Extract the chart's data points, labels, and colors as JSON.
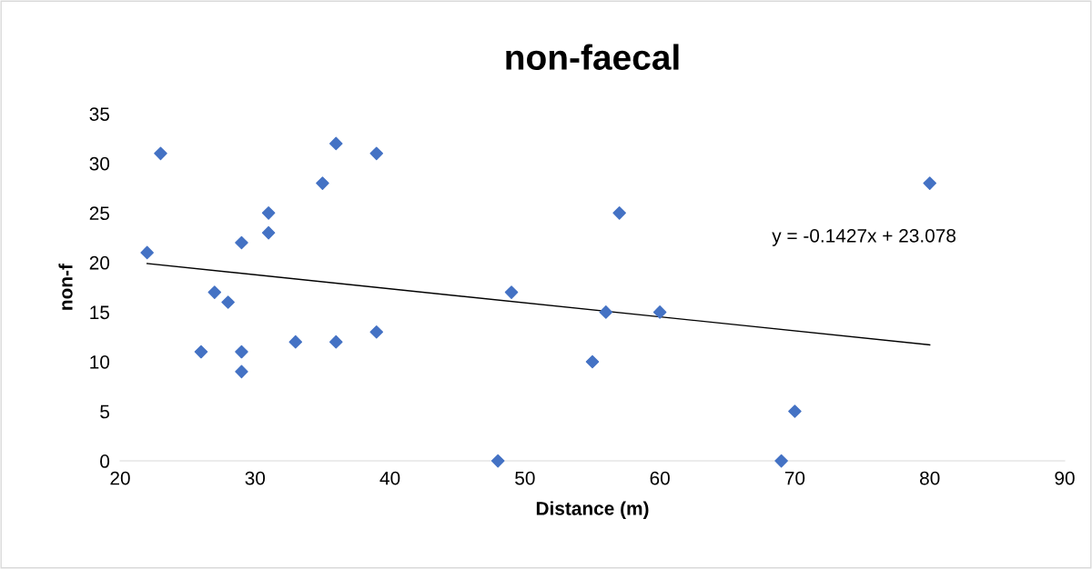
{
  "chart_data": {
    "type": "scatter",
    "title": "non-faecal",
    "xlabel": "Distance (m)",
    "ylabel": "non-f",
    "xlim": [
      20,
      90
    ],
    "xticks": [
      20,
      30,
      40,
      50,
      60,
      70,
      80,
      90
    ],
    "ylim": [
      0,
      35
    ],
    "yticks": [
      0,
      5,
      10,
      15,
      20,
      25,
      30,
      35
    ],
    "grid": false,
    "legend": false,
    "marker": "diamond",
    "series": [
      {
        "color": "#4472c4",
        "x": [
          22,
          23,
          26,
          27,
          28,
          29,
          29,
          29,
          31,
          31,
          33,
          35,
          36,
          36,
          39,
          39,
          48,
          49,
          55,
          56,
          57,
          60,
          69,
          70,
          80
        ],
        "values": [
          21,
          31,
          11,
          17,
          16,
          22,
          11,
          9,
          25,
          23,
          12,
          28,
          32,
          12,
          31,
          13,
          0,
          17,
          10,
          15,
          25,
          15,
          0,
          5,
          28
        ]
      },
      {
        "type": "line",
        "color": "#000000",
        "marker": "none",
        "line_style": "solid",
        "x": [
          22,
          80
        ],
        "values": [
          19.9,
          11.7
        ]
      }
    ],
    "annotations": [
      "y = -0.1427x + 23.078"
    ]
  }
}
